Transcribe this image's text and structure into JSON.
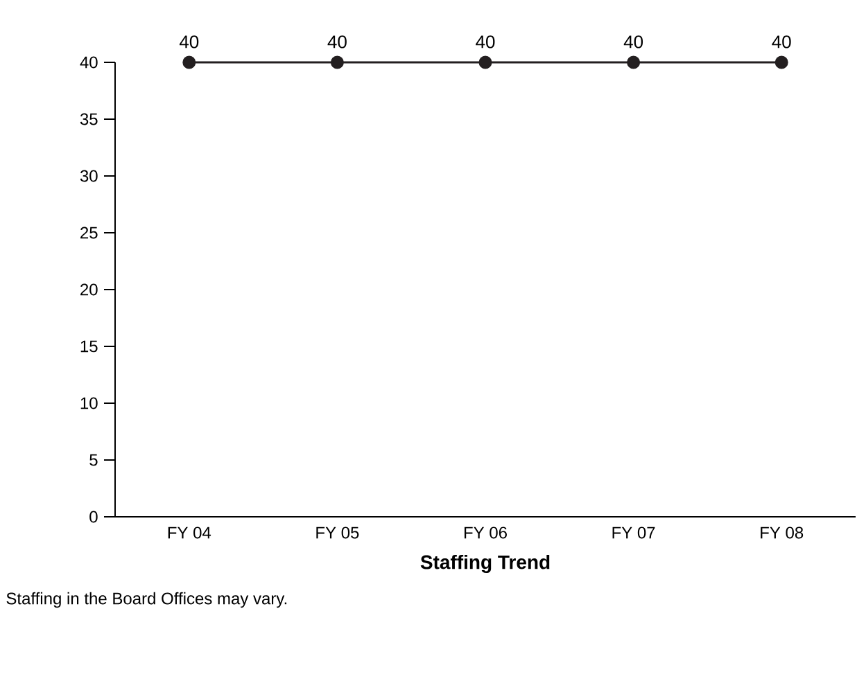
{
  "chart_data": {
    "type": "line",
    "title": "Staffing Trend",
    "categories": [
      "FY 04",
      "FY 05",
      "FY 06",
      "FY 07",
      "FY 08"
    ],
    "values": [
      40,
      40,
      40,
      40,
      40
    ],
    "color": "#231f20",
    "marker": "circle",
    "line_style": "solid",
    "data_labels": true,
    "ylim": [
      0,
      40
    ],
    "yticks": [
      0,
      5,
      10,
      15,
      20,
      25,
      30,
      35,
      40
    ],
    "grid": false,
    "legend": false,
    "annotations": [
      "Staffing in the Board Offices may vary."
    ]
  }
}
